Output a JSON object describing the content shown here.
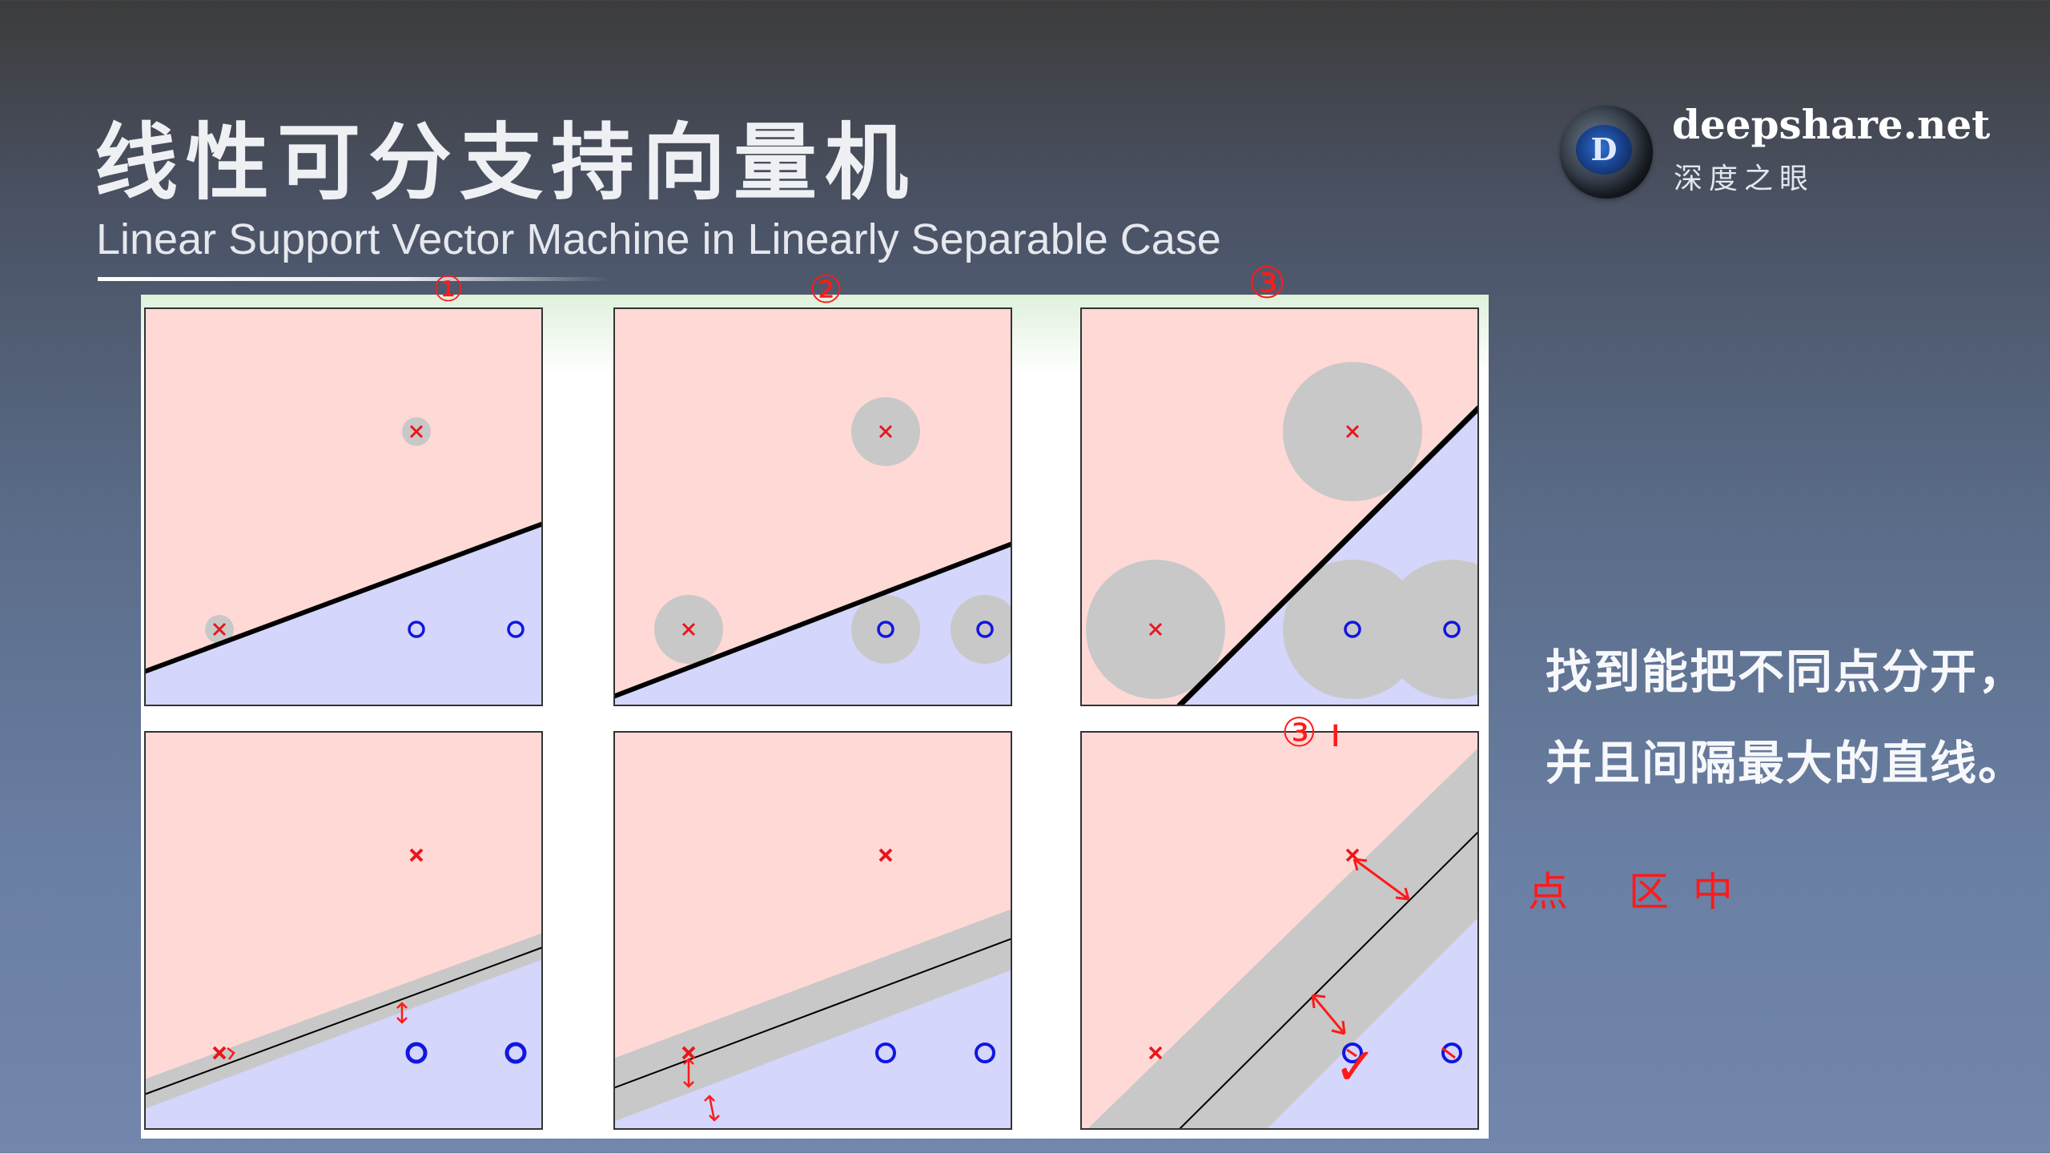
{
  "slide": {
    "title_cn": "线性可分支持向量机",
    "title_en": "Linear Support Vector Machine in Linearly Separable Case"
  },
  "logo": {
    "icon": "deepshare-logo-icon",
    "mark_letter": "D",
    "name": "deepshare.net",
    "subtitle": "深度之眼"
  },
  "caption": {
    "line1": "找到能把不同点分开，",
    "line2": "并且间隔最大的直线。"
  },
  "colors": {
    "positive_region": "#ffd9d6",
    "negative_region": "#d4d6fb",
    "margin_gray": "#c8c8c8",
    "cross": "#e8161b",
    "circle": "#1216e0",
    "annotation": "#ff1a1a"
  },
  "annotations": {
    "panel1_mark": "①",
    "panel2_mark": "②",
    "panel3_mark": "③",
    "panel6_mark": "③ ı",
    "side_note": "点 区中",
    "check_mark": "✓"
  },
  "figure": {
    "panels": [
      {
        "name": "panel-1",
        "markers": [
          {
            "type": "x"
          },
          {
            "type": "x"
          },
          {
            "type": "o"
          },
          {
            "type": "o"
          }
        ],
        "circle_size": "small",
        "boundary": "thick"
      },
      {
        "name": "panel-2",
        "markers": [
          {
            "type": "x"
          },
          {
            "type": "x"
          },
          {
            "type": "o"
          },
          {
            "type": "o"
          }
        ],
        "circle_size": "medium",
        "boundary": "thick"
      },
      {
        "name": "panel-3",
        "markers": [
          {
            "type": "x"
          },
          {
            "type": "x"
          },
          {
            "type": "o"
          },
          {
            "type": "o"
          }
        ],
        "circle_size": "large",
        "boundary": "thick"
      },
      {
        "name": "panel-4",
        "markers": [
          {
            "type": "x"
          },
          {
            "type": "x"
          },
          {
            "type": "o"
          },
          {
            "type": "o"
          }
        ],
        "margin": "narrow"
      },
      {
        "name": "panel-5",
        "markers": [
          {
            "type": "x"
          },
          {
            "type": "x"
          },
          {
            "type": "o"
          },
          {
            "type": "o"
          }
        ],
        "margin": "medium"
      },
      {
        "name": "panel-6",
        "markers": [
          {
            "type": "x"
          },
          {
            "type": "x"
          },
          {
            "type": "o"
          },
          {
            "type": "o"
          }
        ],
        "margin": "wide"
      }
    ]
  }
}
